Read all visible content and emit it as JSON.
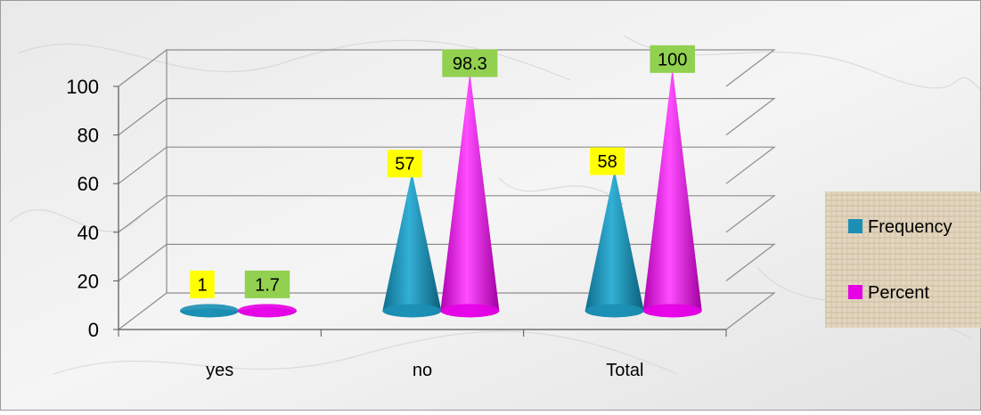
{
  "chart_data": {
    "type": "bar",
    "style": "3d-cone",
    "categories": [
      "yes",
      "no",
      "Total"
    ],
    "series": [
      {
        "name": "Frequency",
        "values": [
          1,
          57,
          58
        ],
        "color": "#1B8FB4",
        "label_bg": "#FFFF00"
      },
      {
        "name": "Percent",
        "values": [
          1.7,
          98.3,
          100
        ],
        "color": "#E600E6",
        "label_bg": "#92D050"
      }
    ],
    "value_labels": {
      "Frequency": [
        "1",
        "57",
        "58"
      ],
      "Percent": [
        "1.7",
        "98.3",
        "100"
      ]
    },
    "ylim": [
      0,
      100
    ],
    "yticks": [
      0,
      20,
      40,
      60,
      80,
      100
    ],
    "ytick_labels": [
      "0",
      "20",
      "40",
      "60",
      "80",
      "100"
    ],
    "grid": true,
    "legend_position": "right",
    "background": "marble texture"
  }
}
